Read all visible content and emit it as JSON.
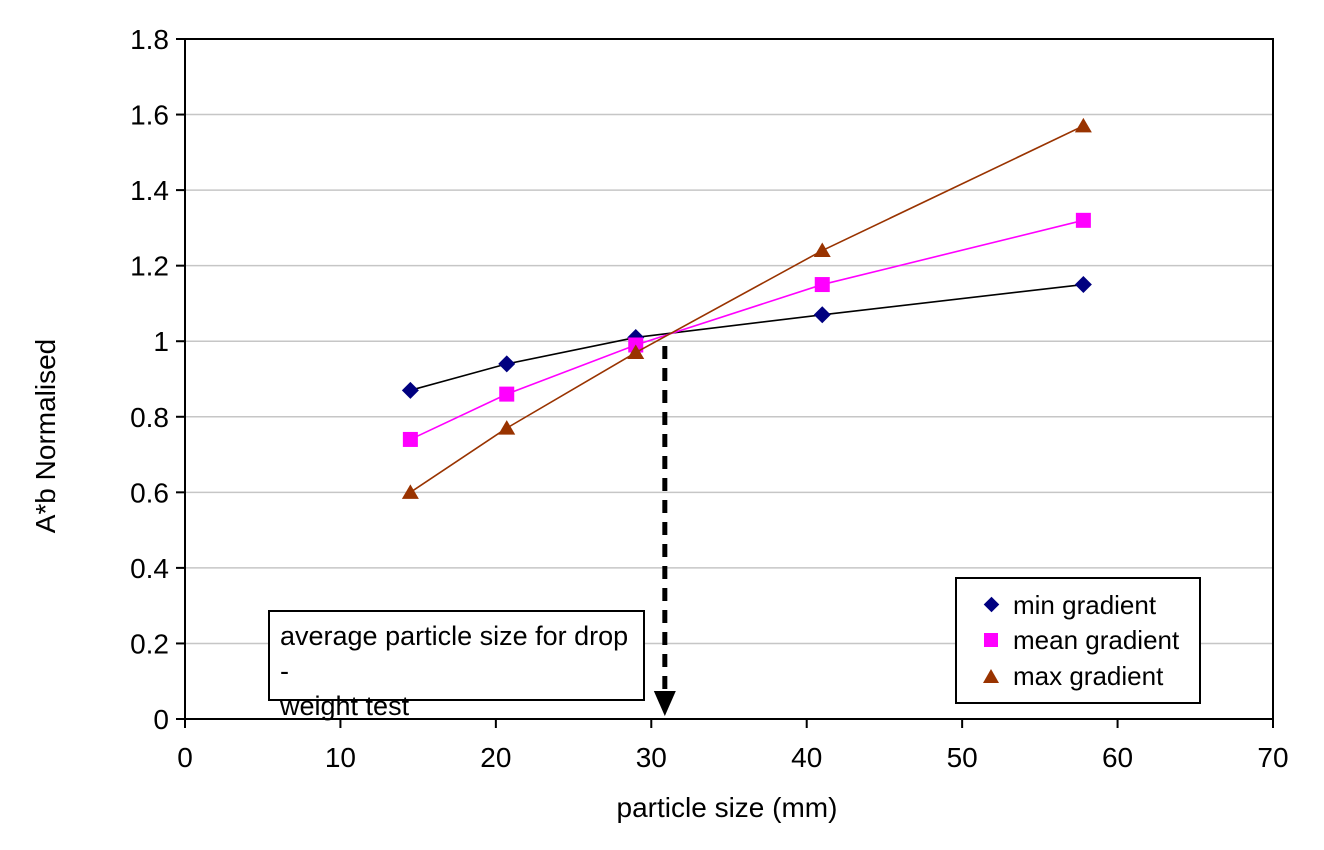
{
  "chart_data": {
    "type": "line",
    "title": "",
    "xlabel": "particle size (mm)",
    "ylabel": "A*b Normalised",
    "xlim": [
      0,
      70
    ],
    "ylim": [
      0,
      1.8
    ],
    "x_ticks": [
      0,
      10,
      20,
      30,
      40,
      50,
      60,
      70
    ],
    "y_ticks": [
      0,
      0.2,
      0.4,
      0.6,
      0.8,
      1,
      1.2,
      1.4,
      1.6,
      1.8
    ],
    "grid": "horizontal-only",
    "gridline_color": "#c6c6c6",
    "axis_color": "#000000",
    "x": [
      14.5,
      20.7,
      29,
      41,
      57.8
    ],
    "series": [
      {
        "name": "min gradient",
        "marker": "diamond",
        "marker_color": "#000080",
        "line_color": "#000000",
        "values": [
          0.87,
          0.94,
          1.01,
          1.07,
          1.15
        ]
      },
      {
        "name": "mean gradient",
        "marker": "square",
        "marker_color": "#ff00ff",
        "line_color": "#ff00ff",
        "values": [
          0.74,
          0.86,
          0.99,
          1.15,
          1.32
        ]
      },
      {
        "name": "max gradient",
        "marker": "triangle",
        "marker_color": "#993300",
        "line_color": "#993300",
        "values": [
          0.6,
          0.77,
          0.97,
          1.24,
          1.57
        ]
      }
    ],
    "legend_position": "inside-bottom-right",
    "annotation": {
      "line1": "average particle size for drop -",
      "line2": "weight test",
      "arrow_x": 31
    }
  }
}
